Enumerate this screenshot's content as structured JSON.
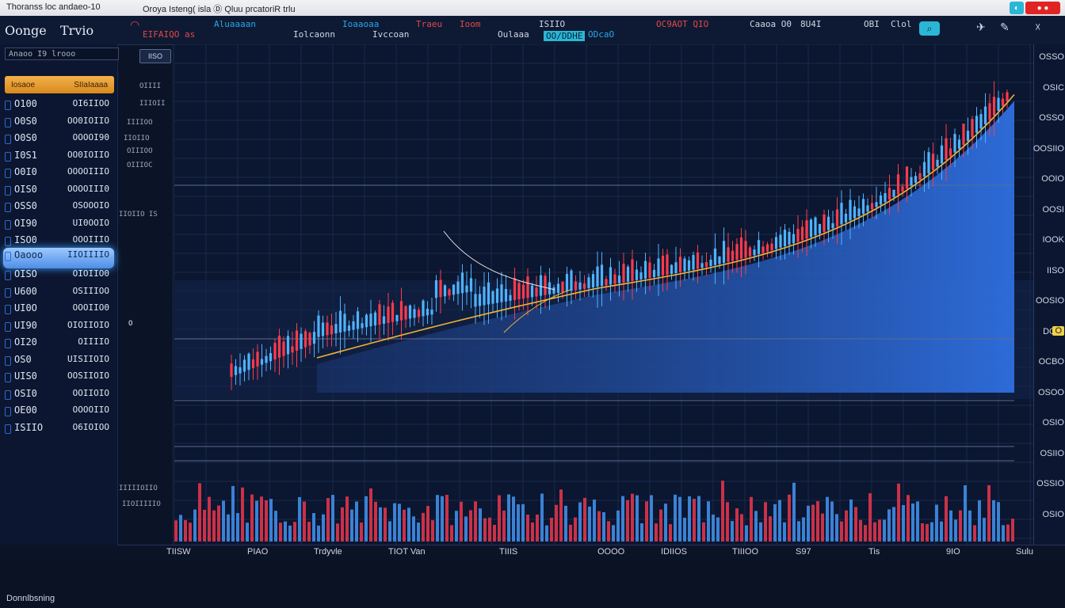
{
  "titlebar": {
    "left_title": "Thoranss loc andaeo-10",
    "center_title": "Oroya Isteng( isla  Ⓓ Qluu prcatoriR trlu",
    "colors": {
      "close": "#e02424",
      "min": "#2bb6d6"
    }
  },
  "navbar": {
    "brand_a": "Oonge",
    "brand_b": "Trvio",
    "items": [
      {
        "label": "EIFAIQO  as",
        "color": "#e34848"
      },
      {
        "label": "Aluaaaan",
        "color": "#2aa6e8"
      },
      {
        "label": "Iolcaonn",
        "color": "#cfd6e6"
      },
      {
        "label": "Ioaaoaa",
        "color": "#2aa6e8"
      },
      {
        "label": "Ivccoan",
        "color": "#cfd6e6"
      },
      {
        "label": "Traeu",
        "color": "#e34848"
      },
      {
        "label": "Ioom",
        "color": "#e34848"
      },
      {
        "label": "Oulaaa",
        "color": "#cfd6e6"
      },
      {
        "label": "ISIIO",
        "color": "#cfd6e6"
      },
      {
        "label": "ODcaO",
        "color": "#2aa6e8"
      },
      {
        "label": "OC9AOT  QIO",
        "color": "#e34848"
      },
      {
        "label": "Caaoa  O0",
        "color": "#cfd6e6"
      },
      {
        "label": "8U4I",
        "color": "#cfd6e6"
      },
      {
        "label": "OBI",
        "color": "#cfd6e6"
      },
      {
        "label": "Clol",
        "color": "#cfd6e6"
      }
    ],
    "badge": "OO/DDHE"
  },
  "sidebar": {
    "search_placeholder": "Anaoo  I9   lrooo",
    "tab_left": "Iosaoe",
    "tab_right": "SIIaIaaaa",
    "watchlist": [
      {
        "sym": "O100",
        "val": "OI6IIOO",
        "dot": "#2a6bd6"
      },
      {
        "sym": "O0S0",
        "val": "OO0IOIIO",
        "dot": "#2a6bd6"
      },
      {
        "sym": "O0S0",
        "val": "OOOOI90",
        "dot": "#2a6bd6"
      },
      {
        "sym": "I0S1",
        "val": "OO0IOIIO",
        "dot": "#2a6bd6"
      },
      {
        "sym": "O0I0",
        "val": "OOOOIIIO",
        "dot": "#2a6bd6"
      },
      {
        "sym": "OIS0",
        "val": "OOOOIII0",
        "dot": "#2a6bd6"
      },
      {
        "sym": "OSS0",
        "val": "OSOOOIO",
        "dot": "#2a6bd6"
      },
      {
        "sym": "OI90",
        "val": "UI0OOIO",
        "dot": "#2a6bd6"
      },
      {
        "sym": "ISO0",
        "val": "OOOIIIO",
        "dot": "#2a6bd6"
      },
      {
        "sym": "Oaooo",
        "val": "IIOIIIIO",
        "dot": "#2a6bd6",
        "selected": true
      },
      {
        "sym": "OISO",
        "val": "OIOIIO0",
        "dot": "#2a6bd6"
      },
      {
        "sym": "U600",
        "val": "OSIIIOO",
        "dot": "#2a6bd6"
      },
      {
        "sym": "UI0O",
        "val": "OOOIIO0",
        "dot": "#2a6bd6"
      },
      {
        "sym": "UI90",
        "val": "OIOIIOIO",
        "dot": "#2a6bd6"
      },
      {
        "sym": "OI20",
        "val": "OIIIIO",
        "dot": "#2a6bd6"
      },
      {
        "sym": "OS0",
        "val": "UISIIOIO",
        "dot": "#2a6bd6"
      },
      {
        "sym": "UIS0",
        "val": "OOSIIOIO",
        "dot": "#2a6bd6"
      },
      {
        "sym": "OSI0",
        "val": "OOIIOIO",
        "dot": "#2a6bd6"
      },
      {
        "sym": "OE00",
        "val": "OOOOIIO",
        "dot": "#2a6bd6"
      },
      {
        "sym": "ISIIO",
        "val": "O6IOIOO",
        "dot": "#2a6bd6"
      }
    ]
  },
  "mini": {
    "btn": "IISO",
    "lines": [
      "OIIII",
      "IIIOII",
      "IIIIOO",
      "IIOIIO",
      "OIIIOO",
      "OIIIOC",
      "IIOIIO  IS",
      "IIIIIOIIO",
      "IIOIIIIIO"
    ],
    "side_label": "O"
  },
  "price_axis": {
    "labels": [
      "OSSO",
      "OSIC",
      "OSSO",
      "OOSIIO",
      "OOIO",
      "OOSI",
      "IOOK",
      "IISO",
      "OOSIO",
      "DOIS",
      "OCBO",
      "OSOO",
      "OSIO",
      "OSIIO",
      "OSSIO",
      "OSIO"
    ],
    "highlight": "O"
  },
  "time_axis": {
    "labels": [
      "TIISW",
      "PIAO",
      "Trdyvle",
      "TIOT Van",
      "TIIIS",
      "OOOO",
      "IDIIOS",
      "TIIIOO",
      "S97",
      "Tis",
      "9IO",
      "Sulu"
    ]
  },
  "status": {
    "text": "Donnlbsning"
  }
}
